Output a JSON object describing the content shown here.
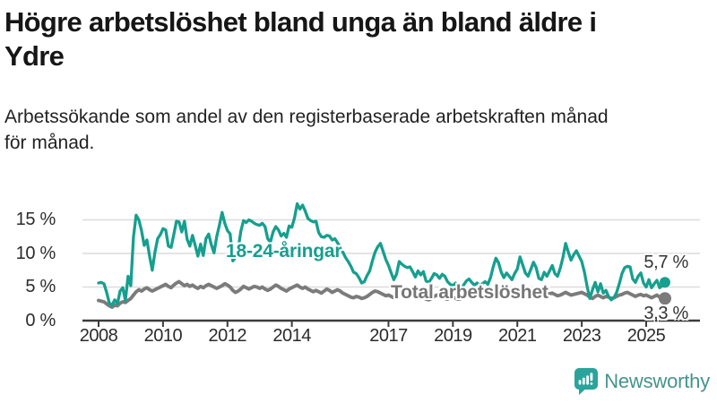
{
  "header": {
    "title": "Högre arbetslöshet bland unga än bland äldre i Ydre",
    "title_lines": [
      "Högre arbetslöshet bland unga än bland äldre i",
      "Ydre"
    ],
    "subtitle": "Arbetssökande som andel av den registerbaserade arbetskraften månad för månad.",
    "subtitle_lines": [
      "Arbetssökande som andel av den registerbaserade arbetskraften månad",
      "för månad."
    ]
  },
  "branding": {
    "name": "Newsworthy",
    "icon": "bar-chart-speech-bubble-icon"
  },
  "colors": {
    "accent_teal": "#169f8e",
    "line_total": "#7b7b7b",
    "axis": "#3c3c3c",
    "grid": "#dcdcdc",
    "title_text": "#161616",
    "value_label_text": "#333333",
    "brand_text": "#45948c",
    "brand_icon": "#2aa39b"
  },
  "chart_data": {
    "type": "line",
    "title": "Högre arbetslöshet bland unga än bland äldre i Ydre",
    "subtitle": "Arbetssökande som andel av den registerbaserade arbetskraften månad för månad.",
    "unit": "%",
    "frequency": "monthly",
    "x_start": "2008-01",
    "x_end": "2025-08",
    "x_tick_years": [
      2008,
      2010,
      2012,
      2014,
      2017,
      2019,
      2021,
      2023,
      2025
    ],
    "y_ticks": [
      {
        "value": 0,
        "label": "0 %"
      },
      {
        "value": 5,
        "label": "5 %"
      },
      {
        "value": 10,
        "label": "10 %"
      },
      {
        "value": 15,
        "label": "15 %"
      }
    ],
    "ylim": [
      0,
      17.7
    ],
    "grid": true,
    "series": [
      {
        "name": "18-24-åringar",
        "color": "#169f8e",
        "end_label": "5,7 %",
        "end_value": 5.7,
        "values": [
          5.6,
          5.7,
          5.5,
          4.2,
          2.6,
          2.3,
          3.1,
          2.5,
          4.4,
          4.9,
          3.0,
          6.6,
          5.2,
          12.4,
          15.7,
          15.0,
          13.4,
          11.2,
          12.0,
          9.6,
          7.5,
          10.2,
          12.2,
          12.8,
          13.7,
          13.5,
          11.1,
          10.9,
          12.8,
          14.8,
          14.7,
          13.2,
          14.8,
          12.1,
          11.1,
          12.7,
          11.2,
          9.6,
          11.4,
          9.7,
          12.2,
          12.9,
          11.3,
          10.1,
          12.5,
          14.2,
          16.1,
          14.5,
          13.4,
          12.9,
          8.9,
          9.4,
          10.6,
          13.3,
          14.9,
          14.6,
          15.0,
          14.8,
          14.5,
          14.3,
          14.2,
          14.5,
          14.0,
          12.2,
          11.7,
          13.2,
          14.0,
          13.5,
          12.6,
          13.0,
          12.4,
          14.1,
          13.9,
          15.3,
          17.4,
          16.6,
          17.2,
          16.3,
          15.2,
          14.9,
          14.7,
          14.8,
          13.1,
          12.5,
          12.4,
          12.7,
          12.6,
          12.0,
          12.2,
          11.6,
          10.9,
          10.2,
          9.4,
          8.8,
          8.1,
          7.2,
          7.0,
          6.4,
          5.6,
          5.8,
          6.7,
          7.4,
          8.9,
          10.2,
          11.0,
          11.5,
          10.3,
          9.1,
          8.2,
          7.1,
          6.1,
          6.9,
          8.8,
          8.4,
          8.1,
          7.9,
          8.0,
          7.3,
          6.5,
          7.4,
          6.8,
          7.3,
          5.9,
          5.7,
          6.3,
          7.0,
          6.8,
          6.3,
          6.9,
          6.6,
          5.8,
          5.4,
          5.2,
          5.6,
          5.0,
          4.7,
          5.3,
          5.9,
          6.2,
          5.7,
          5.3,
          5.6,
          5.2,
          5.5,
          5.8,
          5.4,
          6.4,
          8.0,
          9.3,
          8.6,
          7.2,
          6.4,
          7.1,
          6.6,
          6.1,
          7.0,
          7.7,
          9.5,
          8.3,
          7.1,
          6.6,
          7.6,
          8.7,
          7.9,
          6.3,
          6.1,
          7.2,
          6.6,
          7.4,
          8.2,
          7.0,
          6.6,
          7.8,
          9.4,
          11.5,
          10.2,
          9.0,
          9.8,
          10.4,
          9.6,
          8.8,
          7.2,
          5.1,
          3.3,
          4.6,
          5.7,
          4.3,
          5.5,
          4.1,
          4.5,
          3.6,
          3.1,
          3.4,
          4.2,
          5.5,
          7.0,
          7.9,
          8.1,
          8.0,
          6.2,
          5.7,
          6.6,
          7.1,
          5.6,
          5.0,
          6.1,
          4.9,
          5.5,
          6.0,
          4.9,
          5.2,
          5.7
        ]
      },
      {
        "name": "Total arbetslöshet",
        "color": "#7b7b7b",
        "end_label": "3,3 %",
        "end_value": 3.3,
        "values": [
          3.0,
          2.9,
          2.8,
          2.5,
          2.2,
          2.0,
          2.3,
          2.2,
          2.6,
          2.8,
          2.7,
          3.0,
          3.3,
          3.8,
          4.3,
          4.6,
          4.4,
          4.7,
          4.9,
          4.6,
          4.4,
          4.6,
          4.8,
          5.0,
          5.2,
          5.4,
          5.1,
          4.9,
          5.3,
          5.6,
          5.8,
          5.5,
          5.2,
          5.4,
          5.1,
          5.3,
          5.0,
          4.8,
          5.1,
          4.9,
          5.2,
          5.4,
          5.2,
          5.0,
          4.8,
          5.0,
          5.2,
          5.5,
          5.3,
          5.0,
          4.5,
          4.2,
          4.4,
          4.7,
          5.1,
          4.9,
          4.7,
          4.9,
          5.1,
          5.0,
          4.8,
          5.0,
          4.7,
          4.5,
          4.7,
          5.0,
          5.3,
          5.1,
          4.8,
          4.6,
          4.4,
          4.7,
          4.9,
          5.1,
          5.3,
          5.0,
          4.8,
          5.0,
          4.7,
          4.5,
          4.3,
          4.5,
          4.3,
          4.1,
          4.4,
          4.7,
          4.5,
          4.2,
          4.4,
          4.6,
          4.4,
          4.1,
          3.9,
          3.7,
          3.5,
          3.4,
          3.6,
          3.5,
          3.3,
          3.4,
          3.6,
          3.9,
          4.2,
          4.4,
          4.3,
          4.1,
          3.9,
          3.7,
          3.8,
          3.6,
          3.4,
          3.5,
          3.8,
          4.0,
          4.2,
          4.0,
          3.8,
          3.6,
          3.5,
          3.7,
          3.6,
          3.4,
          3.2,
          3.1,
          3.3,
          3.6,
          3.8,
          3.6,
          3.4,
          3.3,
          3.2,
          3.4,
          3.5,
          3.3,
          3.2,
          3.3,
          3.5,
          3.8,
          4.0,
          3.8,
          3.6,
          3.7,
          3.6,
          3.8,
          3.9,
          3.8,
          4.1,
          4.4,
          4.6,
          4.7,
          4.8,
          4.6,
          4.5,
          4.4,
          4.3,
          4.4,
          4.5,
          4.6,
          4.4,
          4.2,
          4.1,
          4.3,
          4.5,
          4.2,
          4.0,
          3.8,
          3.7,
          3.9,
          4.0,
          4.1,
          3.9,
          3.7,
          3.8,
          4.0,
          4.2,
          4.0,
          3.8,
          3.9,
          4.0,
          4.1,
          4.2,
          4.0,
          3.8,
          3.5,
          3.3,
          3.6,
          3.8,
          3.6,
          3.4,
          3.6,
          3.5,
          3.3,
          3.4,
          3.6,
          3.8,
          3.9,
          4.1,
          4.2,
          4.0,
          3.8,
          3.6,
          3.8,
          3.9,
          3.7,
          3.8,
          3.6,
          3.4,
          3.6,
          3.8,
          3.5,
          3.4,
          3.3
        ]
      }
    ],
    "legend_position": "inline-labels"
  }
}
